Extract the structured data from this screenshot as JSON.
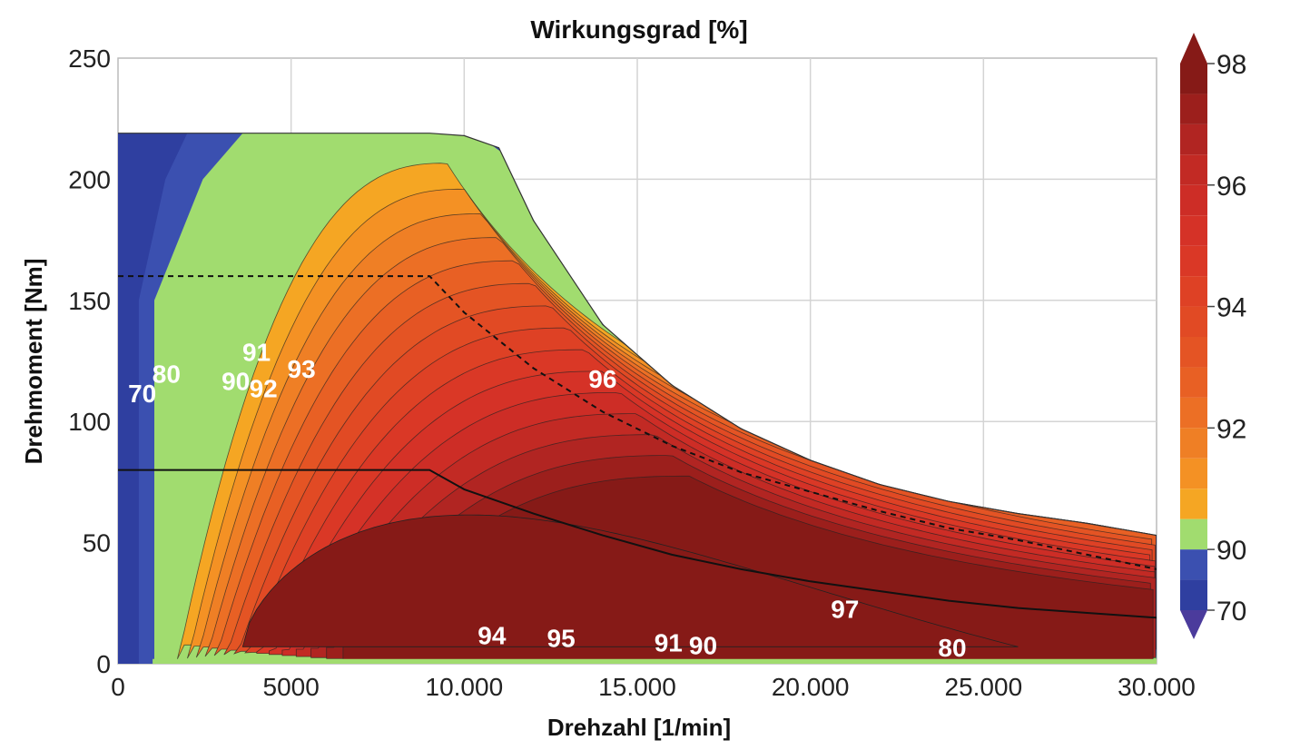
{
  "chart_data": {
    "type": "heatmap",
    "title": "Wirkungsgrad [%]",
    "xlabel": "Drehzahl [1/min]",
    "ylabel": "Drehmoment [Nm]",
    "xlim": [
      0,
      30000
    ],
    "ylim": [
      0,
      250
    ],
    "x_ticks": [
      {
        "value": 0,
        "label": "0"
      },
      {
        "value": 5000,
        "label": "5000"
      },
      {
        "value": 10000,
        "label": "10.000"
      },
      {
        "value": 15000,
        "label": "15.000"
      },
      {
        "value": 20000,
        "label": "20.000"
      },
      {
        "value": 25000,
        "label": "25.000"
      },
      {
        "value": 30000,
        "label": "30.000"
      }
    ],
    "y_ticks": [
      {
        "value": 0,
        "label": "0"
      },
      {
        "value": 50,
        "label": "50"
      },
      {
        "value": 100,
        "label": "100"
      },
      {
        "value": 150,
        "label": "150"
      },
      {
        "value": 200,
        "label": "200"
      },
      {
        "value": 250,
        "label": "250"
      }
    ],
    "grid": true,
    "colorbar": {
      "position": "right",
      "levels": [
        70,
        80,
        90,
        90.5,
        91,
        91.5,
        92,
        92.5,
        93,
        93.5,
        94,
        94.5,
        95,
        95.5,
        96,
        96.5,
        97,
        97.5,
        98
      ],
      "colors": [
        "#2f3fa0",
        "#3b50b0",
        "#a1dc6f",
        "#f5a623",
        "#f49124",
        "#ef7f25",
        "#ec6f25",
        "#e86024",
        "#e45424",
        "#e14a24",
        "#de4125",
        "#da3826",
        "#d53227",
        "#cd2d26",
        "#c22a24",
        "#b12522",
        "#9c1f1c",
        "#861a17"
      ],
      "tick_labels": [
        {
          "value": 70,
          "label": "70"
        },
        {
          "value": 90,
          "label": "90"
        },
        {
          "value": 92,
          "label": "92"
        },
        {
          "value": 94,
          "label": "94"
        },
        {
          "value": 96,
          "label": "96"
        },
        {
          "value": 98,
          "label": "98"
        }
      ]
    },
    "full_load_envelope": [
      [
        0,
        219
      ],
      [
        9000,
        219
      ],
      [
        10000,
        218
      ],
      [
        11000,
        213
      ],
      [
        12000,
        183
      ],
      [
        14000,
        140
      ],
      [
        16000,
        115
      ],
      [
        18000,
        97
      ],
      [
        20000,
        84
      ],
      [
        22000,
        74
      ],
      [
        24000,
        67
      ],
      [
        26000,
        62
      ],
      [
        28000,
        58
      ],
      [
        30000,
        53
      ]
    ],
    "dashed_limit_curve": [
      [
        0,
        160
      ],
      [
        9000,
        160
      ],
      [
        10000,
        145
      ],
      [
        12000,
        122
      ],
      [
        14000,
        104
      ],
      [
        16000,
        90
      ],
      [
        18000,
        79
      ],
      [
        20000,
        71
      ],
      [
        22000,
        63
      ],
      [
        24000,
        56
      ],
      [
        26000,
        51
      ],
      [
        28000,
        45
      ],
      [
        30000,
        39
      ]
    ],
    "solid_limit_curve": [
      [
        0,
        80
      ],
      [
        9000,
        80
      ],
      [
        10000,
        72
      ],
      [
        12000,
        62
      ],
      [
        14000,
        53
      ],
      [
        16000,
        45
      ],
      [
        18000,
        39
      ],
      [
        20000,
        34
      ],
      [
        22000,
        30
      ],
      [
        24000,
        26
      ],
      [
        26000,
        23
      ],
      [
        28000,
        21
      ],
      [
        30000,
        19
      ]
    ],
    "contour_labels": [
      {
        "text": "70",
        "x": 700,
        "y": 108
      },
      {
        "text": "80",
        "x": 1400,
        "y": 116
      },
      {
        "text": "90",
        "x": 3400,
        "y": 113
      },
      {
        "text": "91",
        "x": 4000,
        "y": 125
      },
      {
        "text": "92",
        "x": 4200,
        "y": 110
      },
      {
        "text": "93",
        "x": 5300,
        "y": 118
      },
      {
        "text": "96",
        "x": 14000,
        "y": 114
      },
      {
        "text": "97",
        "x": 21000,
        "y": 19
      },
      {
        "text": "94",
        "x": 10800,
        "y": 8
      },
      {
        "text": "95",
        "x": 12800,
        "y": 7
      },
      {
        "text": "91",
        "x": 15900,
        "y": 5
      },
      {
        "text": "90",
        "x": 16900,
        "y": 4
      },
      {
        "text": "80",
        "x": 24100,
        "y": 3
      }
    ]
  }
}
